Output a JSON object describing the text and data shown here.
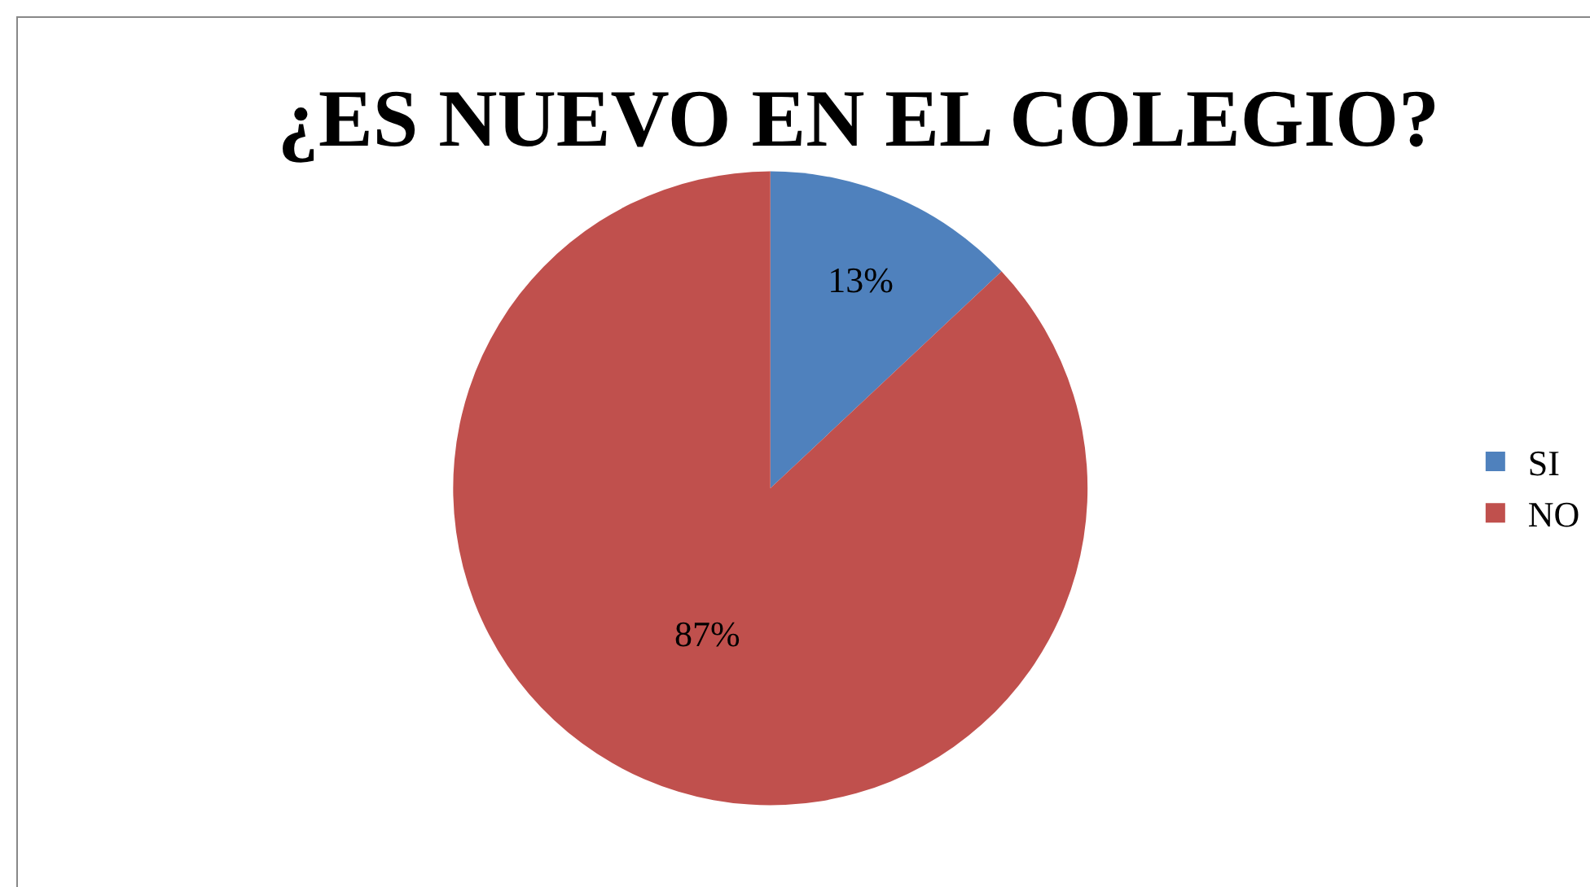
{
  "chart_data": {
    "type": "pie",
    "title": "¿ES NUEVO EN EL COLEGIO?",
    "categories": [
      "SI",
      "NO"
    ],
    "values": [
      13,
      87
    ],
    "value_labels": [
      "13%",
      "87%"
    ],
    "colors": [
      "#4f81bd",
      "#c0504d"
    ],
    "legend": "right"
  }
}
